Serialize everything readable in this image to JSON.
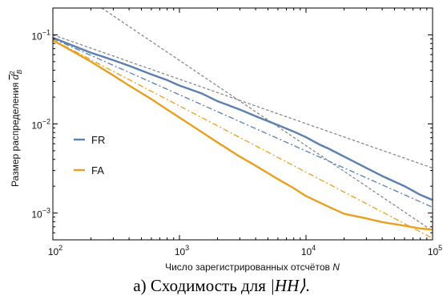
{
  "chart_data": {
    "type": "line",
    "xscale": "log",
    "yscale": "log",
    "xlim": [
      100,
      100000
    ],
    "ylim": [
      0.0005,
      0.2
    ],
    "x_ticks": [
      {
        "value": 100,
        "base": "10",
        "exp": "2"
      },
      {
        "value": 1000,
        "base": "10",
        "exp": "3"
      },
      {
        "value": 10000,
        "base": "10",
        "exp": "4"
      },
      {
        "value": 100000,
        "base": "10",
        "exp": "5"
      }
    ],
    "y_ticks": [
      {
        "value": 0.001,
        "base": "10",
        "exp": "−3"
      },
      {
        "value": 0.01,
        "base": "10",
        "exp": "−2"
      },
      {
        "value": 0.1,
        "base": "10",
        "exp": "−1"
      }
    ],
    "xlabel": {
      "text": "Число зарегистрированных отсчётов ",
      "var": "N"
    },
    "ylabel": {
      "text": "Размер распределения ",
      "var": "d",
      "sup": "2",
      "sub": "B"
    },
    "legend_position": "center-left",
    "series": [
      {
        "name": "FR",
        "color": "#5b7fb0",
        "x": [
          100,
          150,
          200,
          300,
          400,
          600,
          800,
          1000,
          1500,
          2000,
          3000,
          4000,
          6000,
          8000,
          10000,
          13000,
          15000,
          20000,
          30000,
          40000,
          60000,
          80000,
          100000
        ],
        "y": [
          0.093,
          0.074,
          0.063,
          0.052,
          0.045,
          0.036,
          0.031,
          0.027,
          0.022,
          0.018,
          0.0145,
          0.0122,
          0.0097,
          0.0082,
          0.0071,
          0.0058,
          0.0053,
          0.0043,
          0.0032,
          0.0026,
          0.002,
          0.0016,
          0.0014
        ]
      },
      {
        "name": "FA",
        "color": "#e8a020",
        "x": [
          100,
          150,
          200,
          300,
          400,
          600,
          800,
          1000,
          1500,
          2000,
          3000,
          4000,
          6000,
          8000,
          10000,
          15000,
          20000,
          30000,
          40000,
          60000,
          80000,
          100000
        ],
        "y": [
          0.087,
          0.063,
          0.05,
          0.035,
          0.027,
          0.019,
          0.0145,
          0.0118,
          0.0081,
          0.0062,
          0.0043,
          0.0034,
          0.0024,
          0.0019,
          0.00155,
          0.00118,
          0.00098,
          0.00087,
          0.00079,
          0.00072,
          0.00067,
          0.00065
        ]
      }
    ],
    "reference_lines": [
      {
        "style": "dash-dot",
        "color": "#5b7fb0",
        "x": [
          100,
          100000
        ],
        "y": [
          0.091,
          0.00116
        ]
      },
      {
        "style": "dash-dot",
        "color": "#e8a020",
        "x": [
          100,
          100000
        ],
        "y": [
          0.088,
          0.00052
        ]
      },
      {
        "style": "dashed",
        "color": "#808080",
        "x": [
          100,
          100000
        ],
        "y": [
          0.1,
          0.0032
        ]
      },
      {
        "style": "dashed",
        "color": "#808080",
        "x": [
          243,
          100000
        ],
        "y": [
          0.2,
          0.00063
        ]
      }
    ]
  },
  "caption": {
    "prefix": "а) Сходимость для ",
    "state": "|HH⟩",
    "suffix": "."
  }
}
